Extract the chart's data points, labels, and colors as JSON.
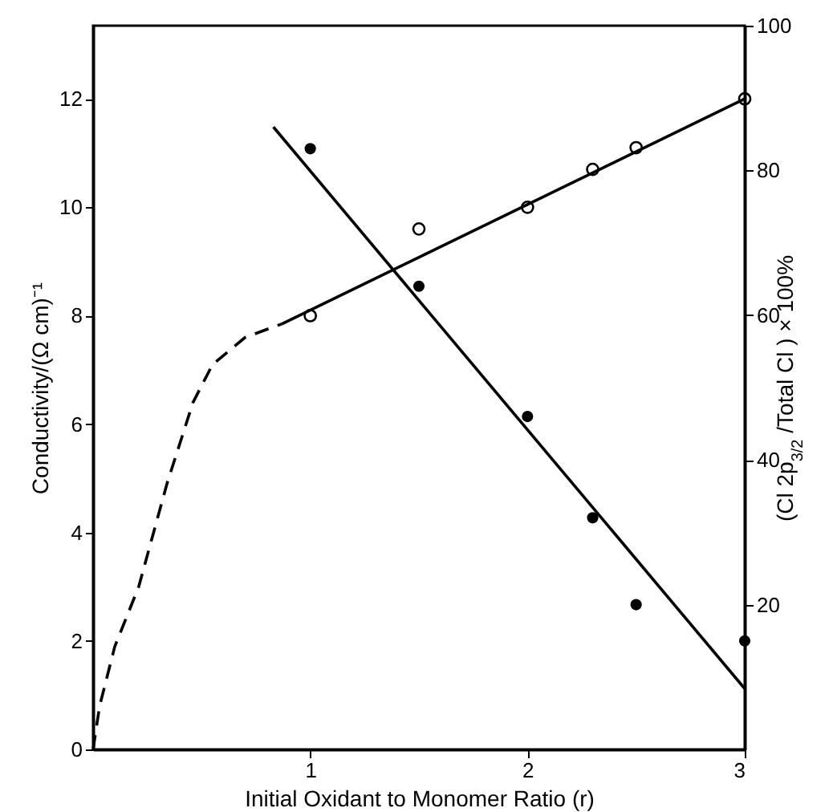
{
  "chart_data": {
    "type": "scatter",
    "xlabel": "Initial Oxidant to Monomer Ratio (r)",
    "ylabel": "Conductivity/(Ω cm)⁻¹",
    "y2label": "(Cl  2p$_{3/2}$ /Total Cl ) × 100%",
    "xlim": [
      0,
      3
    ],
    "xticks": [
      1,
      2,
      3
    ],
    "ylim": [
      0,
      13.35
    ],
    "yticks": [
      0,
      2,
      4,
      6,
      8,
      10,
      12
    ],
    "y2lim": [
      0,
      100
    ],
    "y2ticks": [
      20,
      40,
      60,
      80,
      100
    ],
    "series": [
      {
        "type": "line",
        "color": "#000000",
        "line_style": "dashed",
        "x": [
          0,
          0.03,
          0.1,
          0.21,
          0.34,
          0.46,
          0.55,
          0.7,
          0.87
        ],
        "values": [
          0,
          0.8,
          1.9,
          3.0,
          4.9,
          6.4,
          7.1,
          7.6,
          7.85
        ]
      },
      {
        "type": "line",
        "color": "#000000",
        "line_style": "solid",
        "x": [
          0.87,
          3
        ],
        "values": [
          7.85,
          12.0
        ]
      },
      {
        "color": "#000000",
        "marker": "circle",
        "x": [
          1,
          1.5,
          2,
          2.3,
          2.5,
          3
        ],
        "values": [
          8.0,
          9.6,
          10.0,
          10.7,
          11.1,
          12.0
        ]
      },
      {
        "type": "line",
        "color": "#000000",
        "line_style": "solid",
        "axis": "y2",
        "x": [
          0.83,
          3
        ],
        "values": [
          86,
          8.4
        ]
      },
      {
        "color": "#000000",
        "marker": "circle",
        "axis": "y2",
        "x": [
          1,
          1.5,
          2,
          2.3,
          2.5,
          3
        ],
        "values": [
          83,
          64,
          46,
          32,
          20,
          15
        ]
      }
    ]
  }
}
